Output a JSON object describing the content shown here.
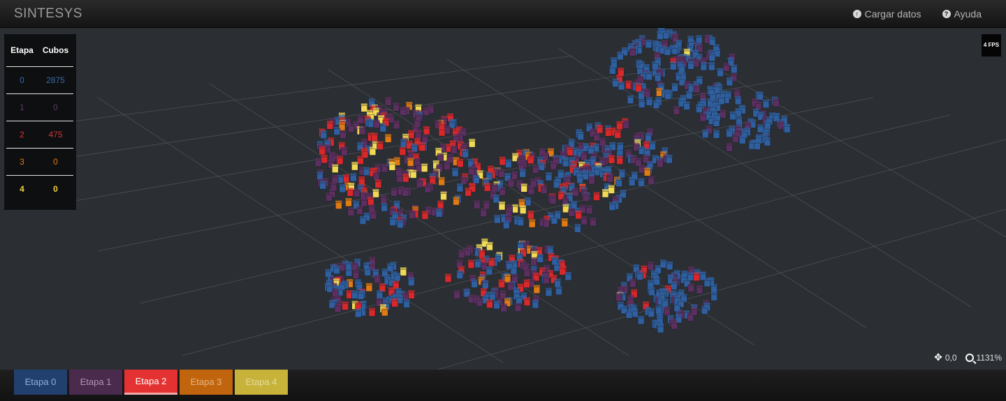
{
  "header": {
    "brand": "SINTESYS",
    "nav": [
      {
        "label": "Cargar datos",
        "icon": "upload-circle-icon"
      },
      {
        "label": "Ayuda",
        "icon": "help-circle-icon"
      }
    ]
  },
  "stats": {
    "headers": [
      "Etapa",
      "Cubos"
    ],
    "rows": [
      {
        "etapa": "0",
        "cubos": "2875"
      },
      {
        "etapa": "1",
        "cubos": "0"
      },
      {
        "etapa": "2",
        "cubos": "475"
      },
      {
        "etapa": "3",
        "cubos": "0"
      },
      {
        "etapa": "4",
        "cubos": "0"
      }
    ]
  },
  "fps": "4 FPS",
  "view": {
    "position": "0,0",
    "zoom": "1131%"
  },
  "tabs": [
    {
      "label": "Etapa 0",
      "bg": "#22406e",
      "color": "#8fb0da",
      "active": false
    },
    {
      "label": "Etapa 1",
      "bg": "#4a2b4e",
      "color": "#b194b6",
      "active": false
    },
    {
      "label": "Etapa 2",
      "bg": "#e43232",
      "color": "#ffffff",
      "active": true
    },
    {
      "label": "Etapa 3",
      "bg": "#c0650d",
      "color": "#e7b583",
      "active": false
    },
    {
      "label": "Etapa 4",
      "bg": "#c7b33a",
      "color": "#e6dca0",
      "active": false
    }
  ],
  "cube_colors": {
    "etapa_0": "#2f5f9e",
    "etapa_1": "#5c2f5e",
    "etapa_2": "#d9282a",
    "etapa_3": "#e07a12",
    "etapa_4": "#f1d955"
  }
}
